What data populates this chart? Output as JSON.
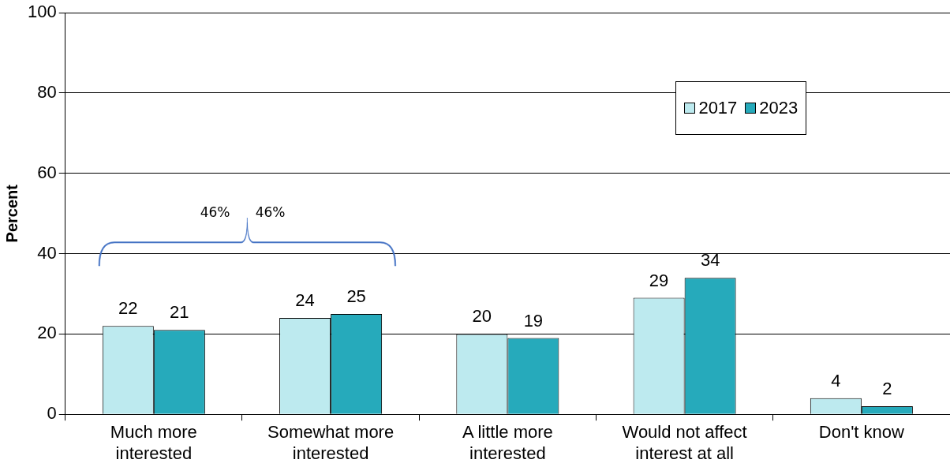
{
  "chart_data": {
    "type": "bar",
    "ylabel": "Percent",
    "categories": [
      "Much more\ninterested",
      "Somewhat more\ninterested",
      "A little more\ninterested",
      "Would not affect\ninterest at all",
      "Don't know"
    ],
    "series": [
      {
        "name": "2017",
        "color": "#bdeaef",
        "values": [
          22,
          24,
          20,
          29,
          4
        ]
      },
      {
        "name": "2023",
        "color": "#26aabb",
        "values": [
          21,
          25,
          19,
          34,
          2
        ]
      }
    ],
    "ylim": [
      0,
      100
    ],
    "yticks": [
      0,
      20,
      40,
      60,
      80,
      100
    ],
    "grid": "y",
    "legend": "top right",
    "data_labels": true,
    "annotations": [
      "46%",
      "46%"
    ]
  }
}
